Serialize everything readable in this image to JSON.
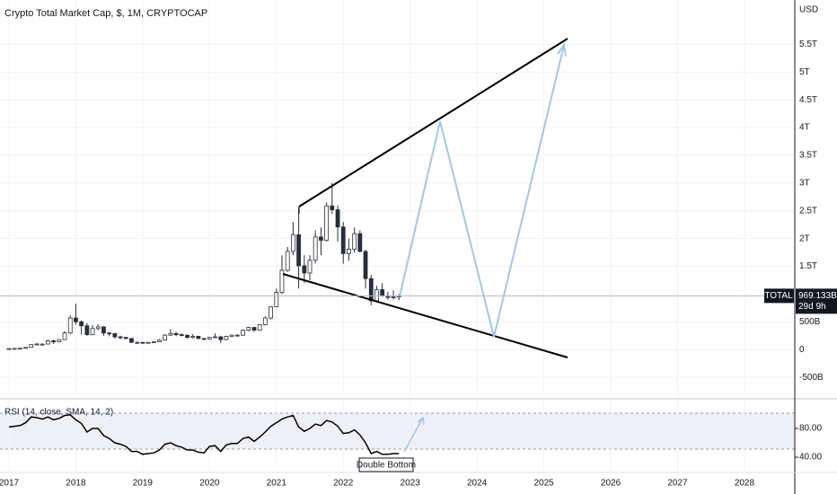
{
  "chart_data": {
    "type": "candlestick",
    "title": "Crypto Total Market Cap, $, 1M, CRYPTOCAP",
    "y_unit": "USD",
    "x": [
      2017.0,
      2017.083,
      2017.167,
      2017.25,
      2017.333,
      2017.417,
      2017.5,
      2017.583,
      2017.667,
      2017.75,
      2017.833,
      2017.917,
      2018.0,
      2018.083,
      2018.167,
      2018.25,
      2018.333,
      2018.417,
      2018.5,
      2018.583,
      2018.667,
      2018.75,
      2018.833,
      2018.917,
      2019.0,
      2019.083,
      2019.167,
      2019.25,
      2019.333,
      2019.417,
      2019.5,
      2019.583,
      2019.667,
      2019.75,
      2019.833,
      2019.917,
      2020.0,
      2020.083,
      2020.167,
      2020.25,
      2020.333,
      2020.417,
      2020.5,
      2020.583,
      2020.667,
      2020.75,
      2020.833,
      2020.917,
      2021.0,
      2021.083,
      2021.167,
      2021.25,
      2021.333,
      2021.417,
      2021.5,
      2021.583,
      2021.667,
      2021.75,
      2021.833,
      2021.917,
      2022.0,
      2022.083,
      2022.167,
      2022.25,
      2022.333,
      2022.417,
      2022.5,
      2022.583,
      2022.667,
      2022.75,
      2022.833
    ],
    "open": [
      0.017,
      0.019,
      0.022,
      0.025,
      0.04,
      0.09,
      0.1,
      0.1,
      0.16,
      0.14,
      0.18,
      0.3,
      0.57,
      0.5,
      0.43,
      0.27,
      0.38,
      0.41,
      0.3,
      0.29,
      0.23,
      0.22,
      0.2,
      0.13,
      0.13,
      0.12,
      0.13,
      0.14,
      0.17,
      0.26,
      0.29,
      0.27,
      0.26,
      0.22,
      0.24,
      0.2,
      0.19,
      0.22,
      0.23,
      0.18,
      0.24,
      0.26,
      0.26,
      0.35,
      0.4,
      0.35,
      0.45,
      0.57,
      0.77,
      1.03,
      1.43,
      1.77,
      2.07,
      1.51,
      1.38,
      1.61,
      2.03,
      1.97,
      2.59,
      2.52,
      2.21,
      1.73,
      1.81,
      2.09,
      1.77,
      1.28,
      0.88,
      1.08,
      0.97,
      0.94,
      0.95
    ],
    "high": [
      0.021,
      0.024,
      0.028,
      0.042,
      0.1,
      0.12,
      0.11,
      0.18,
      0.18,
      0.19,
      0.33,
      0.62,
      0.83,
      0.53,
      0.48,
      0.44,
      0.46,
      0.42,
      0.32,
      0.3,
      0.25,
      0.23,
      0.21,
      0.15,
      0.14,
      0.14,
      0.15,
      0.19,
      0.28,
      0.37,
      0.32,
      0.29,
      0.27,
      0.28,
      0.25,
      0.21,
      0.23,
      0.29,
      0.25,
      0.25,
      0.27,
      0.28,
      0.36,
      0.41,
      0.41,
      0.46,
      0.6,
      0.78,
      1.1,
      1.7,
      1.85,
      2.3,
      2.56,
      1.7,
      1.7,
      2.15,
      2.2,
      2.65,
      3.0,
      2.6,
      2.3,
      2.0,
      2.2,
      2.15,
      1.8,
      1.35,
      1.15,
      1.2,
      1.04,
      1.07,
      1.0
    ],
    "low": [
      0.016,
      0.018,
      0.02,
      0.024,
      0.038,
      0.08,
      0.07,
      0.095,
      0.1,
      0.135,
      0.17,
      0.28,
      0.45,
      0.27,
      0.25,
      0.26,
      0.35,
      0.25,
      0.24,
      0.2,
      0.19,
      0.19,
      0.12,
      0.1,
      0.11,
      0.11,
      0.125,
      0.135,
      0.16,
      0.25,
      0.24,
      0.24,
      0.2,
      0.2,
      0.19,
      0.17,
      0.18,
      0.22,
      0.12,
      0.17,
      0.23,
      0.25,
      0.25,
      0.33,
      0.32,
      0.34,
      0.44,
      0.54,
      0.76,
      1.0,
      1.4,
      1.7,
      1.1,
      1.2,
      1.25,
      1.55,
      1.7,
      1.95,
      2.45,
      1.95,
      1.55,
      1.6,
      1.75,
      1.75,
      1.1,
      0.8,
      0.86,
      0.95,
      0.9,
      0.9,
      0.89
    ],
    "close": [
      0.019,
      0.022,
      0.025,
      0.04,
      0.09,
      0.1,
      0.1,
      0.16,
      0.14,
      0.18,
      0.3,
      0.57,
      0.5,
      0.43,
      0.27,
      0.38,
      0.41,
      0.3,
      0.29,
      0.23,
      0.22,
      0.2,
      0.13,
      0.13,
      0.12,
      0.13,
      0.14,
      0.17,
      0.26,
      0.29,
      0.27,
      0.26,
      0.22,
      0.24,
      0.2,
      0.19,
      0.22,
      0.23,
      0.18,
      0.24,
      0.26,
      0.26,
      0.35,
      0.4,
      0.35,
      0.45,
      0.57,
      0.77,
      1.03,
      1.43,
      1.77,
      2.07,
      1.51,
      1.38,
      1.61,
      2.03,
      1.97,
      2.59,
      2.52,
      2.21,
      1.73,
      1.81,
      2.09,
      1.77,
      1.28,
      0.88,
      1.08,
      0.97,
      0.94,
      0.95,
      0.969133
    ],
    "up_color": "#ffffff",
    "down_color": "#2a2e39",
    "xlim": [
      2016.866,
      2028.753
    ],
    "xticks": [
      2017,
      2018,
      2019,
      2020,
      2021,
      2022,
      2023,
      2024,
      2025,
      2026,
      2027,
      2028
    ],
    "ylim": [
      -0.87,
      6.3
    ],
    "yticks": [
      {
        "value": -0.5,
        "label": "-500B"
      },
      0,
      {
        "value": 0.5,
        "label": "500B"
      },
      {
        "value": 1.5,
        "label": "1.5T"
      },
      {
        "value": 2,
        "label": "2T"
      },
      {
        "value": 2.5,
        "label": "2.5T"
      },
      {
        "value": 3,
        "label": "3T"
      },
      {
        "value": 3.5,
        "label": "3.5T"
      },
      {
        "value": 4,
        "label": "4T"
      },
      {
        "value": 4.5,
        "label": "4.5T"
      },
      {
        "value": 5,
        "label": "5T"
      },
      {
        "value": 5.5,
        "label": "5.5T"
      }
    ],
    "grid": true,
    "symbol": "TOTAL",
    "last_price_label": "969.133B",
    "countdown": "29d 9h",
    "annotation": "Double Bottom",
    "rsi": {
      "label": "RSI (14, close, SMA, 14, 2)",
      "color": "#000000",
      "values": [
        82,
        83,
        84,
        88,
        96,
        95,
        93,
        96,
        92,
        94,
        98,
        99,
        92,
        87,
        75,
        80,
        80,
        70,
        66,
        60,
        58,
        55,
        48,
        48,
        44,
        45,
        46,
        50,
        58,
        60,
        56,
        54,
        50,
        50,
        47,
        46,
        55,
        56,
        48,
        57,
        59,
        59,
        66,
        68,
        62,
        68,
        75,
        83,
        88,
        93,
        96,
        98,
        82,
        76,
        80,
        86,
        84,
        91,
        89,
        83,
        73,
        74,
        78,
        71,
        60,
        45,
        48,
        44,
        44,
        45,
        45
      ],
      "ylim": [
        20,
        120
      ],
      "yticks": [
        {
          "value": 80,
          "label": "80.00"
        },
        {
          "value": 40,
          "label": "40.00"
        }
      ]
    }
  }
}
